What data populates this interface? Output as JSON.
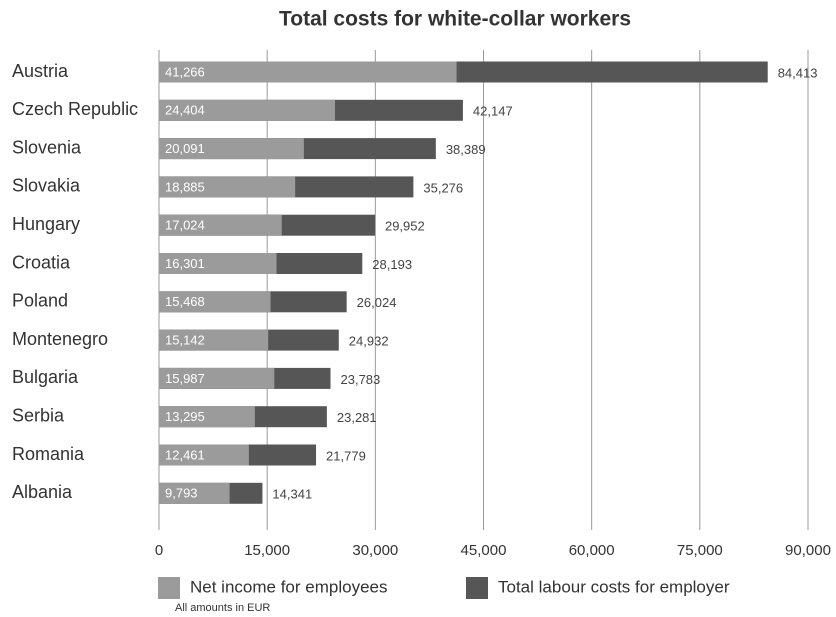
{
  "chart_data": {
    "type": "bar",
    "orientation": "horizontal",
    "overlap": true,
    "title": "Total costs for white-collar workers",
    "note": "All amounts in EUR",
    "categories": [
      "Austria",
      "Czech Republic",
      "Slovenia",
      "Slovakia",
      "Hungary",
      "Croatia",
      "Poland",
      "Montenegro",
      "Bulgaria",
      "Serbia",
      "Romania",
      "Albania"
    ],
    "series": [
      {
        "name": "Net income for employees",
        "color": "#9b9b9b",
        "values": [
          41266,
          24404,
          20091,
          18885,
          17024,
          16301,
          15468,
          15142,
          15987,
          13295,
          12461,
          9793
        ],
        "value_labels": [
          "41,266",
          "24,404",
          "20,091",
          "18,885",
          "17,024",
          "16,301",
          "15,468",
          "15,142",
          "15,987",
          "13,295",
          "12,461",
          "9,793"
        ]
      },
      {
        "name": "Total labour costs for employer",
        "color": "#565656",
        "values": [
          84413,
          42147,
          38389,
          35276,
          29952,
          28193,
          26024,
          24932,
          23783,
          23281,
          21779,
          14341
        ],
        "value_labels": [
          "84,413",
          "42,147",
          "38,389",
          "35,276",
          "29,952",
          "28,193",
          "26,024",
          "24,932",
          "23,783",
          "23,281",
          "21,779",
          "14,341"
        ]
      }
    ],
    "xlim": [
      0,
      90000
    ],
    "xticks": [
      0,
      {
        "value": 15000,
        "label": "15,000"
      },
      {
        "value": 30000,
        "label": "30,000"
      },
      {
        "value": 45000,
        "label": "45,000"
      },
      {
        "value": 60000,
        "label": "60,000"
      },
      {
        "value": 75000,
        "label": "75,000"
      },
      {
        "value": 90000,
        "label": "90,000"
      }
    ],
    "grid": true,
    "legend": "bottom"
  }
}
